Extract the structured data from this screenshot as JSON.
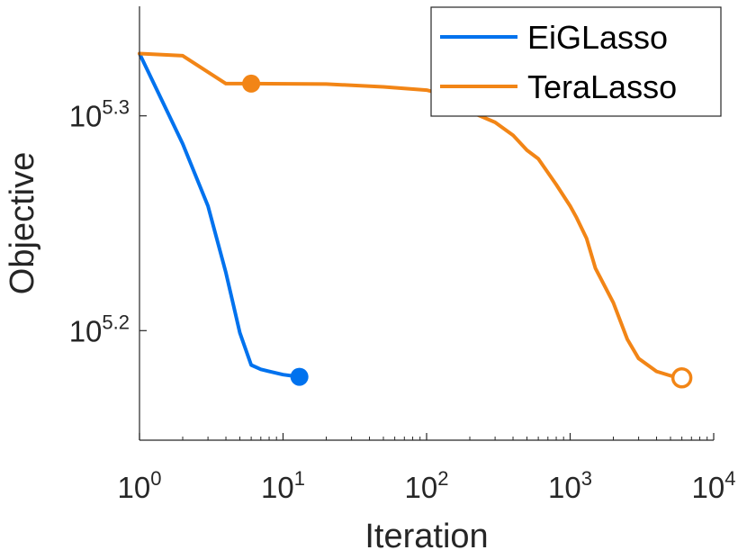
{
  "chart_data": {
    "type": "line",
    "xlabel": "Iteration",
    "ylabel": "Objective",
    "xscale": "log",
    "yscale": "log",
    "xlim": [
      1,
      10000
    ],
    "ylim": [
      5.149,
      5.351
    ],
    "x_ticks": [
      {
        "base": "10",
        "exp": "0",
        "value": 1
      },
      {
        "base": "10",
        "exp": "1",
        "value": 10
      },
      {
        "base": "10",
        "exp": "2",
        "value": 100
      },
      {
        "base": "10",
        "exp": "3",
        "value": 1000
      },
      {
        "base": "10",
        "exp": "4",
        "value": 10000
      }
    ],
    "y_ticks": [
      {
        "base": "10",
        "exp": "5.3",
        "value": 5.3
      },
      {
        "base": "10",
        "exp": "5.2",
        "value": 5.2
      }
    ],
    "grid": false,
    "legend": "top-right",
    "series": [
      {
        "name": "EiGLasso",
        "color": "#0072EE",
        "marker_end": "filled-circle",
        "points": [
          [
            1,
            5.329
          ],
          [
            2,
            5.287
          ],
          [
            3,
            5.258
          ],
          [
            4,
            5.227
          ],
          [
            5,
            5.199
          ],
          [
            6,
            5.184
          ],
          [
            7,
            5.182
          ],
          [
            8,
            5.181
          ],
          [
            10,
            5.1795
          ],
          [
            13,
            5.1785
          ]
        ]
      },
      {
        "name": "TeraLasso",
        "color": "#F28516",
        "marker_start": {
          "x": 6,
          "y": 5.315,
          "style": "filled-circle"
        },
        "marker_end": "open-circle",
        "points": [
          [
            1,
            5.329
          ],
          [
            2,
            5.328
          ],
          [
            4,
            5.315
          ],
          [
            6,
            5.315
          ],
          [
            20,
            5.3148
          ],
          [
            50,
            5.3135
          ],
          [
            100,
            5.312
          ],
          [
            150,
            5.309
          ],
          [
            200,
            5.302
          ],
          [
            300,
            5.297
          ],
          [
            400,
            5.291
          ],
          [
            500,
            5.284
          ],
          [
            600,
            5.28
          ],
          [
            800,
            5.268
          ],
          [
            1000,
            5.258
          ],
          [
            1100,
            5.253
          ],
          [
            1300,
            5.243
          ],
          [
            1500,
            5.229
          ],
          [
            2000,
            5.213
          ],
          [
            2500,
            5.196
          ],
          [
            3000,
            5.187
          ],
          [
            4000,
            5.181
          ],
          [
            5000,
            5.179
          ],
          [
            6000,
            5.178
          ]
        ]
      }
    ]
  }
}
